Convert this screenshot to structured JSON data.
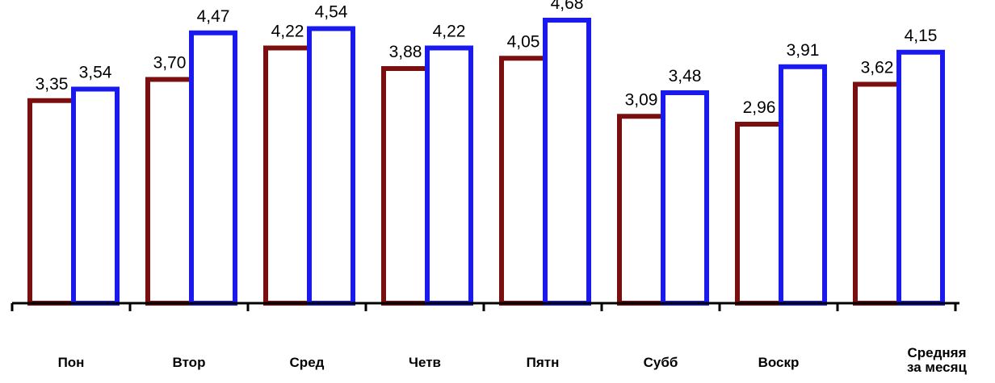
{
  "chart_data": {
    "type": "bar",
    "categories": [
      "Пон",
      "Втор",
      "Сред",
      "Четв",
      "Пятн",
      "Субб",
      "Воскр",
      "Средняя за месяц"
    ],
    "category_lines": [
      [
        "Пон"
      ],
      [
        "Втор"
      ],
      [
        "Сред"
      ],
      [
        "Четв"
      ],
      [
        "Пятн"
      ],
      [
        "Субб"
      ],
      [
        "Воскр"
      ],
      [
        "Средняя",
        "за месяц"
      ]
    ],
    "series": [
      {
        "values": [
          3.35,
          3.7,
          4.22,
          3.88,
          4.05,
          3.09,
          2.96,
          3.62
        ],
        "labels": [
          "3,35",
          "3,70",
          "4,22",
          "3,88",
          "4,05",
          "3,09",
          "2,96",
          "3,62"
        ],
        "color": "#7b0f0f"
      },
      {
        "values": [
          3.54,
          4.47,
          4.54,
          4.22,
          4.68,
          3.48,
          3.91,
          4.15
        ],
        "labels": [
          "3,54",
          "4,47",
          "4,54",
          "4,22",
          "4,68",
          "3,48",
          "3,91",
          "4,15"
        ],
        "color": "#1a1aee"
      }
    ],
    "ylim": [
      0,
      4.68
    ],
    "grid": false,
    "legend": "none",
    "xlabel": "",
    "ylabel": ""
  }
}
